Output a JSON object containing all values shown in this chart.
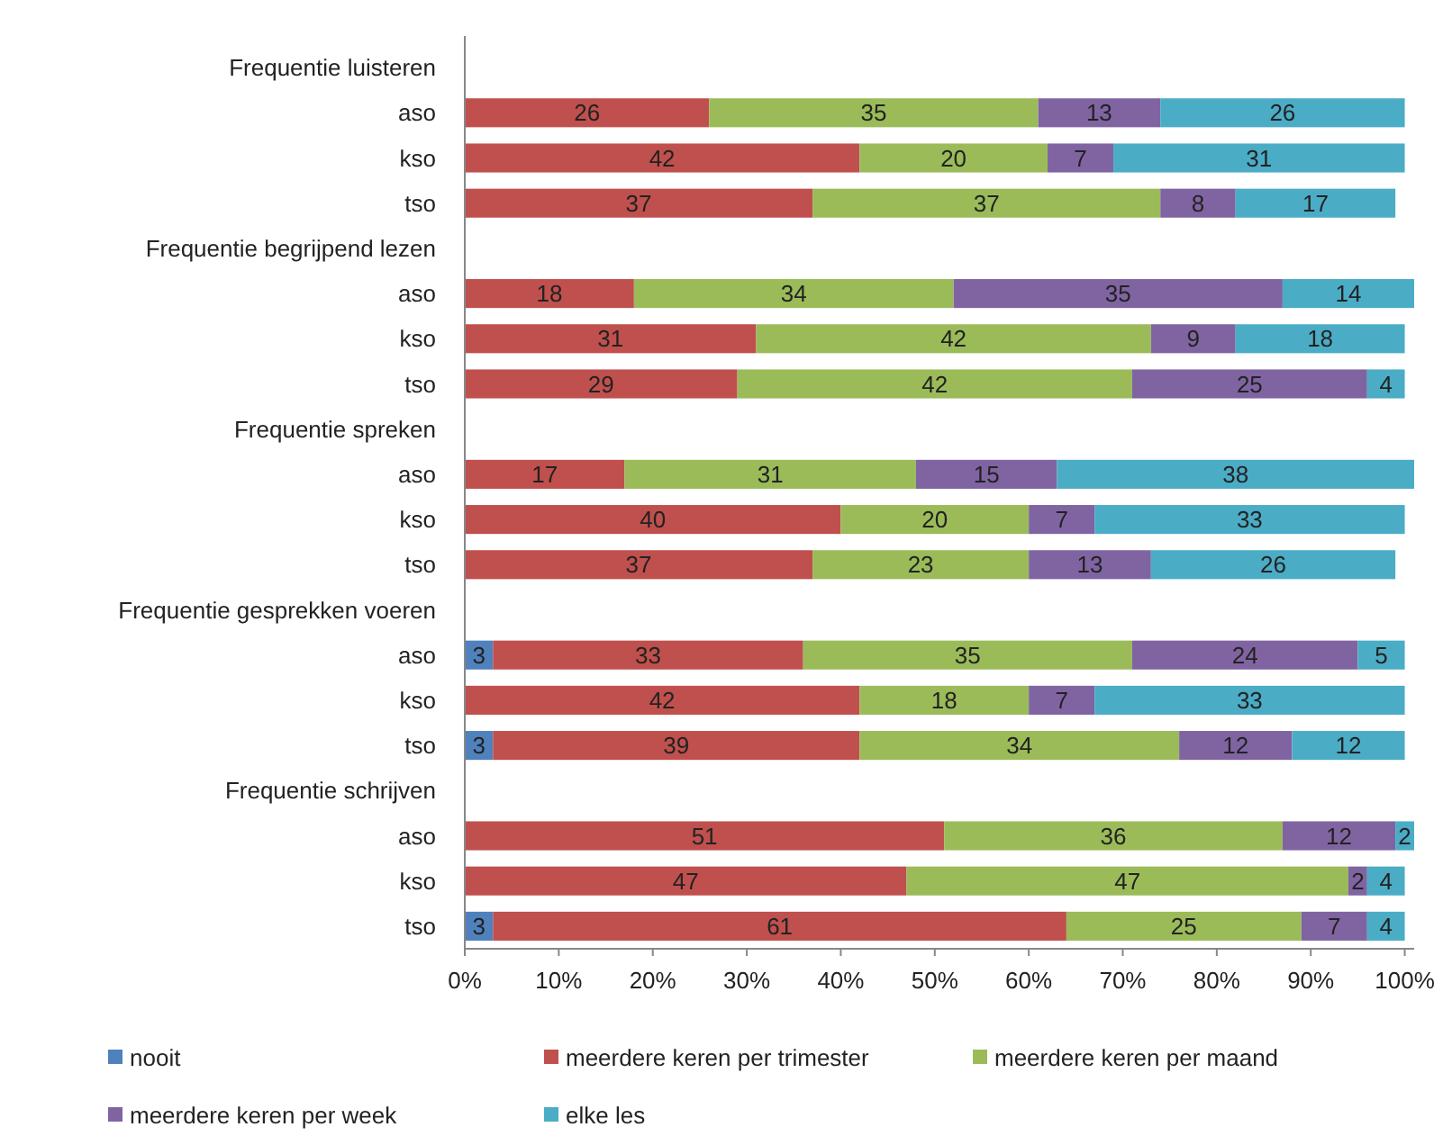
{
  "chart_data": {
    "type": "bar",
    "orientation": "horizontal",
    "stacked": true,
    "categories": [
      "Frequentie luisteren",
      "aso",
      "kso",
      "tso",
      "Frequentie begrijpend lezen",
      "aso",
      "kso",
      "tso",
      "Frequentie spreken",
      "aso",
      "kso",
      "tso",
      "Frequentie gesprekken voeren",
      "aso",
      "kso",
      "tso",
      "Frequentie schrijven",
      "aso",
      "kso",
      "tso"
    ],
    "series": [
      {
        "name": "nooit",
        "color": "#4f81bd",
        "values": [
          null,
          null,
          null,
          null,
          null,
          null,
          null,
          null,
          null,
          null,
          null,
          null,
          null,
          3,
          null,
          3,
          null,
          null,
          null,
          3
        ]
      },
      {
        "name": "meerdere keren per trimester",
        "color": "#c0504d",
        "values": [
          null,
          26,
          42,
          37,
          null,
          18,
          31,
          29,
          null,
          17,
          40,
          37,
          null,
          33,
          42,
          39,
          null,
          51,
          47,
          61
        ]
      },
      {
        "name": "meerdere keren per maand",
        "color": "#9bbb59",
        "values": [
          null,
          35,
          20,
          37,
          null,
          34,
          42,
          42,
          null,
          31,
          20,
          23,
          null,
          35,
          18,
          34,
          null,
          36,
          47,
          25
        ]
      },
      {
        "name": "meerdere keren per week",
        "color": "#8064a2",
        "values": [
          null,
          13,
          7,
          8,
          null,
          35,
          9,
          25,
          null,
          15,
          7,
          13,
          null,
          24,
          7,
          12,
          null,
          12,
          2,
          7
        ]
      },
      {
        "name": "elke les",
        "color": "#4bacc6",
        "values": [
          null,
          26,
          31,
          17,
          null,
          14,
          18,
          4,
          null,
          38,
          33,
          26,
          null,
          5,
          33,
          12,
          null,
          2,
          4,
          4
        ]
      }
    ],
    "xlim": [
      0,
      101
    ],
    "xticks": [
      {
        "value": 0,
        "label": "0%"
      },
      {
        "value": 10,
        "label": "10%"
      },
      {
        "value": 20,
        "label": "20%"
      },
      {
        "value": 30,
        "label": "30%"
      },
      {
        "value": 40,
        "label": "40%"
      },
      {
        "value": 50,
        "label": "50%"
      },
      {
        "value": 60,
        "label": "60%"
      },
      {
        "value": 70,
        "label": "70%"
      },
      {
        "value": 80,
        "label": "80%"
      },
      {
        "value": 90,
        "label": "90%"
      },
      {
        "value": 100,
        "label": "100%"
      }
    ],
    "data_labels": true,
    "grid": false,
    "legend": "bottom"
  }
}
